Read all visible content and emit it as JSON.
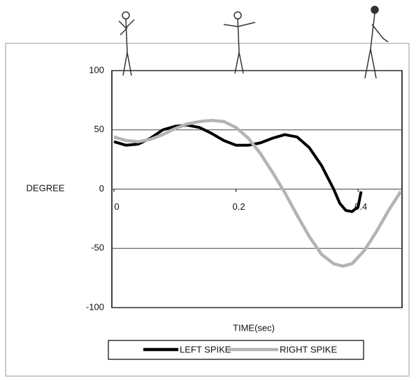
{
  "chart_data": {
    "type": "line",
    "ylabel": "DEGREE",
    "xlabel": "TIME(sec)",
    "xlim": [
      0,
      0.472
    ],
    "xticks": [
      0,
      0.2,
      0.4
    ],
    "ylim": [
      -100,
      100
    ],
    "yticks": [
      100,
      50,
      0,
      -50,
      -100
    ],
    "grid": true,
    "legend": "bottom",
    "series": [
      {
        "name": "LEFT SPIKE",
        "color": "#000000",
        "x": [
          0,
          0.02,
          0.04,
          0.06,
          0.08,
          0.1,
          0.12,
          0.14,
          0.16,
          0.18,
          0.2,
          0.22,
          0.24,
          0.26,
          0.28,
          0.3,
          0.32,
          0.34,
          0.36,
          0.37,
          0.38,
          0.39,
          0.4,
          0.405
        ],
        "values": [
          40,
          37,
          38,
          43,
          50,
          53,
          54,
          52,
          47,
          41,
          37,
          37,
          39,
          43,
          46,
          44,
          35,
          20,
          0,
          -12,
          -18,
          -19,
          -15,
          -2
        ]
      },
      {
        "name": "RIGHT SPIKE",
        "color": "#b4b4b4",
        "x": [
          0,
          0.02,
          0.04,
          0.06,
          0.08,
          0.1,
          0.12,
          0.14,
          0.16,
          0.18,
          0.2,
          0.22,
          0.24,
          0.26,
          0.28,
          0.3,
          0.32,
          0.34,
          0.36,
          0.375,
          0.39,
          0.41,
          0.43,
          0.45,
          0.47
        ],
        "values": [
          44,
          41,
          40,
          42,
          46,
          51,
          55,
          57,
          58,
          57,
          52,
          43,
          30,
          14,
          -3,
          -22,
          -40,
          -55,
          -63,
          -65,
          -63,
          -52,
          -36,
          -18,
          -2
        ]
      }
    ]
  }
}
